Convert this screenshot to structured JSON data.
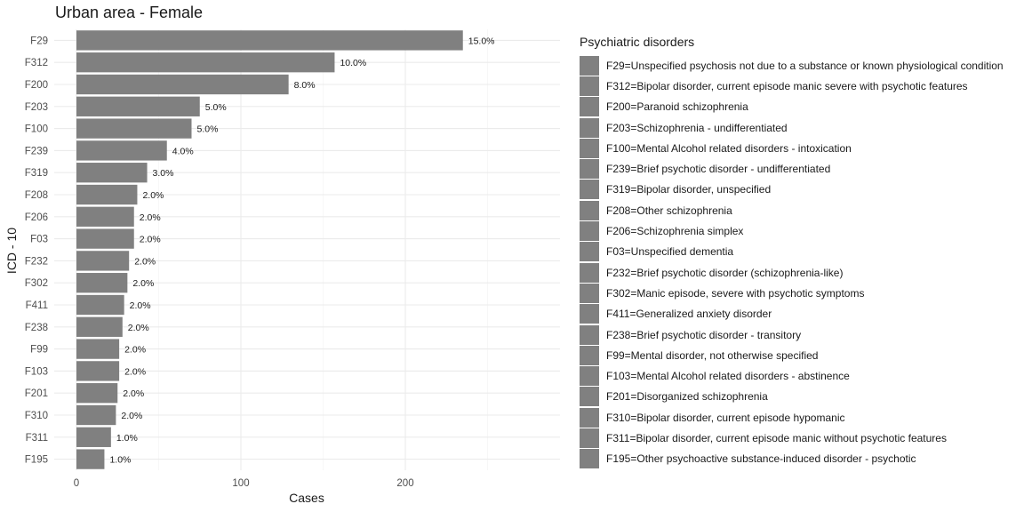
{
  "chart_data": {
    "type": "bar",
    "orientation": "horizontal",
    "title": "Urban area - Female",
    "xlabel": "Cases",
    "ylabel": "ICD - 10",
    "xlim": [
      0,
      295
    ],
    "x_ticks": [
      0,
      100,
      200
    ],
    "grid": true,
    "bar_color": "#808080",
    "legend_position": "right",
    "categories": [
      "F29",
      "F312",
      "F200",
      "F203",
      "F100",
      "F239",
      "F319",
      "F208",
      "F206",
      "F03",
      "F232",
      "F302",
      "F411",
      "F238",
      "F99",
      "F103",
      "F201",
      "F310",
      "F311",
      "F195"
    ],
    "values": [
      235,
      157,
      129,
      75,
      70,
      55,
      43,
      37,
      35,
      35,
      32,
      31,
      29,
      28,
      26,
      26,
      25,
      24,
      21,
      17
    ],
    "data_labels": [
      "15.0%",
      "10.0%",
      "8.0%",
      "5.0%",
      "5.0%",
      "4.0%",
      "3.0%",
      "2.0%",
      "2.0%",
      "2.0%",
      "2.0%",
      "2.0%",
      "2.0%",
      "2.0%",
      "2.0%",
      "2.0%",
      "2.0%",
      "2.0%",
      "1.0%",
      "1.0%"
    ],
    "legend": {
      "title": "Psychiatric disorders",
      "entries": [
        "F29=Unspecified psychosis not due to a substance or known physiological condition",
        "F312=Bipolar disorder, current episode manic severe with psychotic features",
        "F200=Paranoid schizophrenia",
        "F203=Schizophrenia - undifferentiated",
        "F100=Mental Alcohol related disorders - intoxication",
        "F239=Brief psychotic disorder - undifferentiated",
        "F319=Bipolar disorder, unspecified",
        "F208=Other schizophrenia",
        "F206=Schizophrenia simplex",
        "F03=Unspecified dementia",
        "F232=Brief psychotic disorder (schizophrenia-like)",
        "F302=Manic episode, severe with psychotic symptoms",
        "F411=Generalized anxiety disorder",
        "F238=Brief psychotic disorder - transitory",
        "F99=Mental disorder, not otherwise specified",
        "F103=Mental Alcohol related disorders - abstinence",
        "F201=Disorganized schizophrenia",
        "F310=Bipolar disorder, current episode hypomanic",
        "F311=Bipolar disorder, current episode manic without psychotic features",
        "F195=Other psychoactive substance-induced disorder - psychotic"
      ]
    }
  }
}
